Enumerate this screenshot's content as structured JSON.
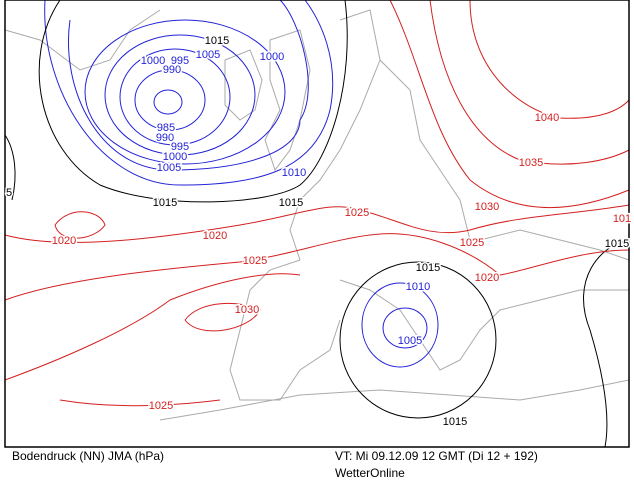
{
  "map": {
    "isobar_labels": [
      "1015",
      "1015",
      "1015",
      "1015",
      "1015",
      "1015",
      "5",
      "1000",
      "995",
      "990",
      "1005",
      "1000",
      "985",
      "990",
      "995",
      "1000",
      "1005",
      "1010",
      "1010",
      "1005",
      "1020",
      "1020",
      "1025",
      "1025",
      "1030",
      "1025",
      "1030",
      "1035",
      "1040",
      "1025",
      "1020",
      "101"
    ]
  },
  "footer": {
    "product": "Bodendruck (NN) JMA (hPa)",
    "valid_time": "VT: Mi 09.12.09 12 GMT (Di 12 + 192)",
    "source": "WetterOnline"
  }
}
